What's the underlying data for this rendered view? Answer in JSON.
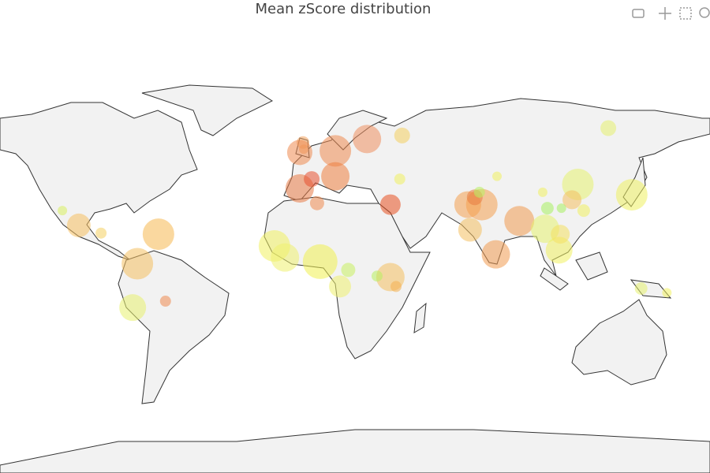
{
  "chart_data": {
    "type": "bubble-map",
    "title": "Mean zScore distribution",
    "points": [
      {
        "lon": -0.3,
        "lat": 53,
        "size": 8,
        "color": "#f4a460"
      },
      {
        "lon": 0,
        "lat": 51,
        "size": 6,
        "color": "#f4a460"
      },
      {
        "lon": -1.7,
        "lat": 50,
        "size": 16,
        "color": "#ee8a50"
      },
      {
        "lon": 13.5,
        "lat": 50.5,
        "size": 20,
        "color": "#ee8a50"
      },
      {
        "lon": 27,
        "lat": 54,
        "size": 18,
        "color": "#ee9060"
      },
      {
        "lon": 42,
        "lat": 55,
        "size": 10,
        "color": "#f4d060"
      },
      {
        "lon": -1.7,
        "lat": 37.5,
        "size": 18,
        "color": "#e87a45"
      },
      {
        "lon": 3.4,
        "lat": 41,
        "size": 10,
        "color": "#e85030"
      },
      {
        "lon": 13.5,
        "lat": 42,
        "size": 18,
        "color": "#ee8040"
      },
      {
        "lon": 5.7,
        "lat": 31.6,
        "size": 9,
        "color": "#ee8a50"
      },
      {
        "lon": 37,
        "lat": 31,
        "size": 13,
        "color": "#e85020"
      },
      {
        "lon": 41,
        "lat": 41,
        "size": 7,
        "color": "#f0f060"
      },
      {
        "lon": -96,
        "lat": 22,
        "size": 15,
        "color": "#f6c060"
      },
      {
        "lon": -86.5,
        "lat": 18.5,
        "size": 7,
        "color": "#f4d060"
      },
      {
        "lon": -62,
        "lat": 18,
        "size": 20,
        "color": "#f6b850"
      },
      {
        "lon": -71,
        "lat": 4,
        "size": 20,
        "color": "#f4c060"
      },
      {
        "lon": -73,
        "lat": -17,
        "size": 17,
        "color": "#e8f070"
      },
      {
        "lon": -59,
        "lat": -14,
        "size": 7,
        "color": "#ee8a50"
      },
      {
        "lon": -103,
        "lat": 28.5,
        "size": 6,
        "color": "#d8f060"
      },
      {
        "lon": -12.5,
        "lat": 12.5,
        "size": 20,
        "color": "#f0f060"
      },
      {
        "lon": -8,
        "lat": 7,
        "size": 18,
        "color": "#eef070"
      },
      {
        "lon": 7,
        "lat": 5,
        "size": 22,
        "color": "#f0f050"
      },
      {
        "lon": 15.5,
        "lat": -7,
        "size": 14,
        "color": "#eef070"
      },
      {
        "lon": 19,
        "lat": 1,
        "size": 9,
        "color": "#c8f060"
      },
      {
        "lon": 37,
        "lat": -2.5,
        "size": 18,
        "color": "#f4c060"
      },
      {
        "lon": 31.3,
        "lat": -2,
        "size": 7,
        "color": "#b8f060"
      },
      {
        "lon": 39.4,
        "lat": -7,
        "size": 7,
        "color": "#f4b050"
      },
      {
        "lon": 70,
        "lat": 31,
        "size": 17,
        "color": "#f4a050"
      },
      {
        "lon": 76,
        "lat": 31,
        "size": 20,
        "color": "#f4a050"
      },
      {
        "lon": 73,
        "lat": 34,
        "size": 10,
        "color": "#e87a40"
      },
      {
        "lon": 71,
        "lat": 20,
        "size": 15,
        "color": "#f4c060"
      },
      {
        "lon": 82,
        "lat": 8.5,
        "size": 18,
        "color": "#f09a50"
      },
      {
        "lon": 92,
        "lat": 24,
        "size": 19,
        "color": "#f09a50"
      },
      {
        "lon": 82.5,
        "lat": 42,
        "size": 6,
        "color": "#f0f060"
      },
      {
        "lon": 102,
        "lat": 36,
        "size": 6,
        "color": "#f0f060"
      },
      {
        "lon": 117,
        "lat": 39,
        "size": 20,
        "color": "#e6f270"
      },
      {
        "lon": 114.5,
        "lat": 33,
        "size": 12,
        "color": "#f4c060"
      },
      {
        "lon": 104,
        "lat": 29.5,
        "size": 8,
        "color": "#a8f060"
      },
      {
        "lon": 110,
        "lat": 29.5,
        "size": 6,
        "color": "#a8f060"
      },
      {
        "lon": 103,
        "lat": 20.5,
        "size": 18,
        "color": "#e6f270"
      },
      {
        "lon": 109,
        "lat": 10.5,
        "size": 17,
        "color": "#f0f060"
      },
      {
        "lon": 109.5,
        "lat": 18,
        "size": 12,
        "color": "#f4e060"
      },
      {
        "lon": 140,
        "lat": 35,
        "size": 20,
        "color": "#eef060"
      },
      {
        "lon": 130,
        "lat": 57,
        "size": 10,
        "color": "#e6f070"
      },
      {
        "lon": 144,
        "lat": -8,
        "size": 8,
        "color": "#e6f070"
      },
      {
        "lon": 155,
        "lat": -10,
        "size": 6,
        "color": "#f0f060"
      },
      {
        "lon": 75,
        "lat": 36,
        "size": 7,
        "color": "#b8f060"
      },
      {
        "lon": 119.5,
        "lat": 28.5,
        "size": 8,
        "color": "#f0f060"
      }
    ],
    "opacity": 0.55
  }
}
